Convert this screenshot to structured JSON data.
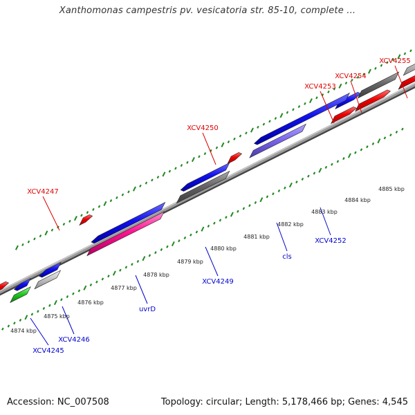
{
  "title": "Xanthomonas campestris pv. vesicatoria str. 85-10, complete ...",
  "footer": {
    "accession": "Accession: NC_007508",
    "summary": "Topology: circular; Length: 5,178,466 bp; Genes: 4,545"
  },
  "colors": {
    "forward_label": "#dd0000",
    "reverse_label": "#0000cc",
    "tick": "#228822",
    "backbone": "#8a8a8a"
  },
  "scale_labels": [
    "4874 kbp",
    "4875 kbp",
    "4876 kbp",
    "4877 kbp",
    "4878 kbp",
    "4879 kbp",
    "4880 kbp",
    "4881 kbp",
    "4882 kbp",
    "4883 kbp",
    "4884 kbp",
    "4885 kbp"
  ],
  "forward_genes": [
    {
      "id": "f0",
      "label": ""
    },
    {
      "id": "f1",
      "label": ""
    },
    {
      "id": "f2",
      "label": "XCV4247"
    },
    {
      "id": "f3",
      "label": "XCV4250"
    },
    {
      "id": "f4",
      "label": "XCV4253"
    },
    {
      "id": "f5",
      "label": "XCV4254"
    },
    {
      "id": "f6",
      "label": "XCV4255"
    },
    {
      "id": "f7",
      "label": ""
    },
    {
      "id": "f8",
      "label": ""
    }
  ],
  "reverse_genes": [
    {
      "id": "r0",
      "label": "XCV4245"
    },
    {
      "id": "r1",
      "label": "XCV4246"
    },
    {
      "id": "r2",
      "label": "uvrD"
    },
    {
      "id": "r3",
      "label": "XCV4249"
    },
    {
      "id": "r4",
      "label": "cls"
    },
    {
      "id": "r5",
      "label": "XCV4252"
    },
    {
      "id": "r6",
      "label": ""
    },
    {
      "id": "r7",
      "label": ""
    },
    {
      "id": "r8",
      "label": ""
    },
    {
      "id": "r9",
      "label": ""
    },
    {
      "id": "r10",
      "label": ""
    },
    {
      "id": "r11",
      "label": ""
    }
  ]
}
